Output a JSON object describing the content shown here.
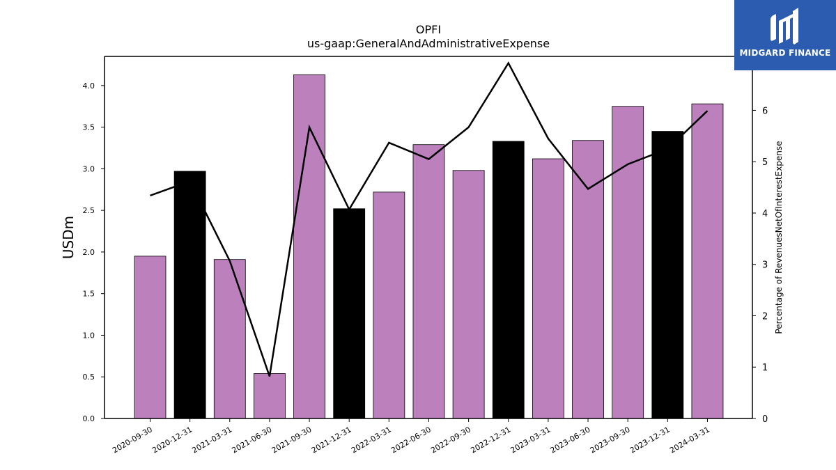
{
  "brand": {
    "name": "MIDGARD FINANCE",
    "color": "#2b5caf"
  },
  "chart_data": {
    "type": "bar",
    "title": "OPFI",
    "subtitle": "us-gaap:GeneralAndAdministrativeExpense",
    "ylabel": "USDm",
    "y2label": "Percentage of RevenuesNetOfInterestExpense",
    "ylim": [
      0,
      4.35
    ],
    "y2lim": [
      0,
      7.05
    ],
    "yticks": [
      "0.0",
      "0.5",
      "1.0",
      "1.5",
      "2.0",
      "2.5",
      "3.0",
      "3.5",
      "4.0"
    ],
    "y2ticks": [
      "0",
      "1",
      "2",
      "3",
      "4",
      "5",
      "6"
    ],
    "categories": [
      "2020-09-30",
      "2020-12-31",
      "2021-03-31",
      "2021-06-30",
      "2021-09-30",
      "2021-12-31",
      "2022-03-31",
      "2022-06-30",
      "2022-09-30",
      "2022-12-31",
      "2023-03-31",
      "2023-06-30",
      "2023-09-30",
      "2023-12-31",
      "2024-03-31"
    ],
    "series": [
      {
        "type": "bar",
        "values": [
          1.95,
          2.97,
          1.91,
          0.54,
          4.13,
          2.52,
          2.72,
          3.29,
          2.98,
          3.33,
          3.12,
          3.34,
          3.75,
          3.45,
          3.78
        ],
        "colors": [
          "#bc80bd",
          "#000000",
          "#bc80bd",
          "#bc80bd",
          "#bc80bd",
          "#000000",
          "#bc80bd",
          "#bc80bd",
          "#bc80bd",
          "#000000",
          "#bc80bd",
          "#bc80bd",
          "#bc80bd",
          "#000000",
          "#bc80bd"
        ]
      },
      {
        "type": "line",
        "axis": "right",
        "color": "#000000",
        "values": [
          4.34,
          4.62,
          3.07,
          0.82,
          5.67,
          4.07,
          5.37,
          5.05,
          5.67,
          6.92,
          5.45,
          4.47,
          4.95,
          5.25,
          5.99
        ]
      }
    ],
    "grid": false,
    "legend": "none"
  }
}
